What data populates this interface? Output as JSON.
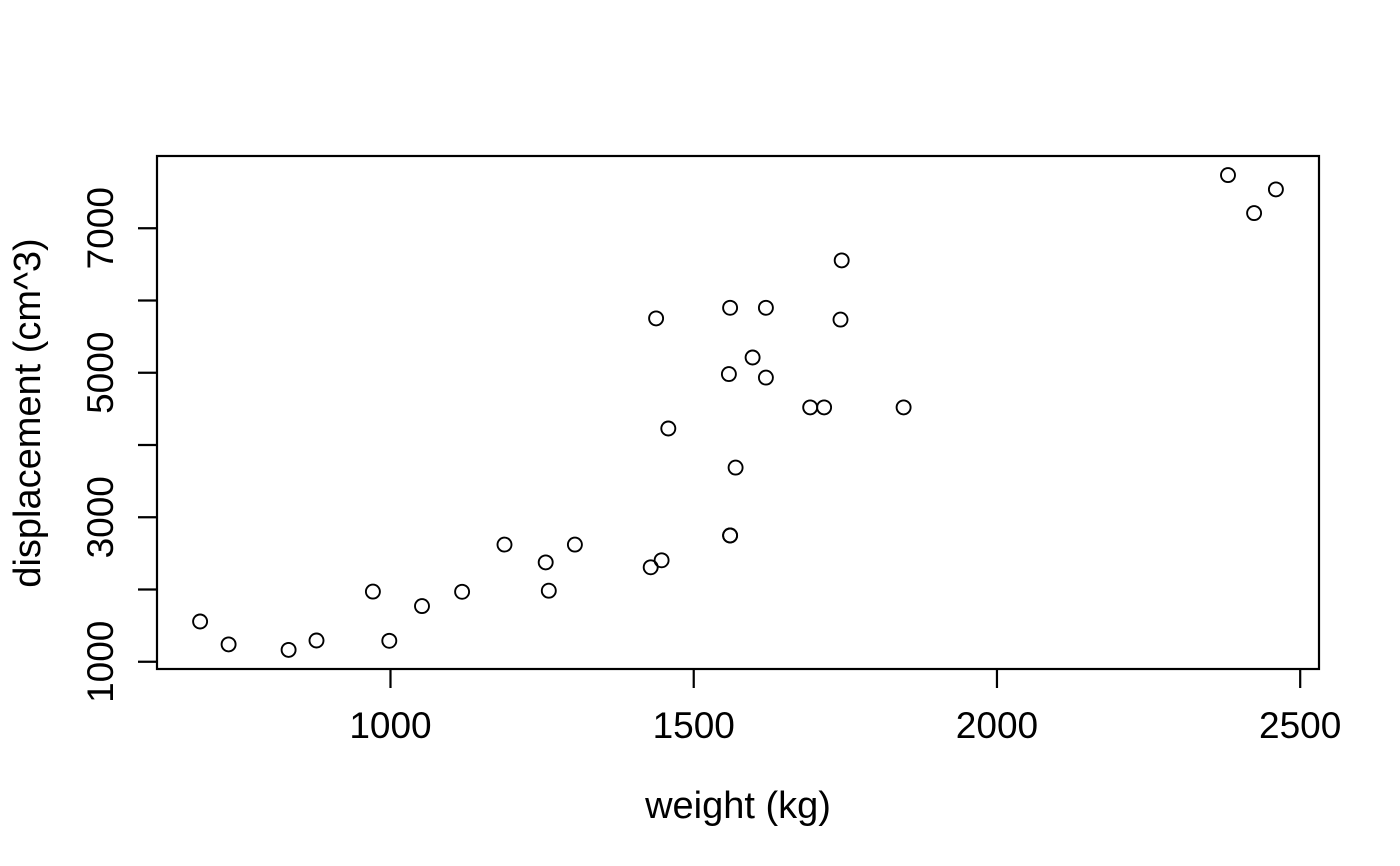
{
  "chart_data": {
    "type": "scatter",
    "title": "",
    "xlabel": "weight (kg)",
    "ylabel": "displacement (cm^3)",
    "xlim": [
      615,
      2531
    ],
    "ylim": [
      900,
      8000
    ],
    "x_ticks": [
      1000,
      1500,
      2000,
      2500
    ],
    "x_tick_labels": [
      "1000",
      "1500",
      "2000",
      "2500"
    ],
    "y_ticks": [
      1000,
      2000,
      3000,
      4000,
      5000,
      6000,
      7000
    ],
    "y_tick_labels": [
      "1000",
      "",
      "3000",
      "",
      "5000",
      "",
      "7000"
    ],
    "grid": false,
    "legend": null,
    "marker": "open-circle",
    "colors": {
      "stroke": "#000000",
      "background": "#ffffff"
    },
    "points": [
      {
        "x": 1188,
        "y": 2622
      },
      {
        "x": 1304,
        "y": 2622
      },
      {
        "x": 1052,
        "y": 1770
      },
      {
        "x": 1458,
        "y": 4228
      },
      {
        "x": 1560,
        "y": 5899
      },
      {
        "x": 1569,
        "y": 3687
      },
      {
        "x": 1619,
        "y": 5899
      },
      {
        "x": 1447,
        "y": 2404
      },
      {
        "x": 1429,
        "y": 2307
      },
      {
        "x": 1560,
        "y": 2747
      },
      {
        "x": 1560,
        "y": 2747
      },
      {
        "x": 1846,
        "y": 4520
      },
      {
        "x": 1692,
        "y": 4520
      },
      {
        "x": 1715,
        "y": 4520
      },
      {
        "x": 2381,
        "y": 7735
      },
      {
        "x": 2460,
        "y": 7538
      },
      {
        "x": 2424,
        "y": 7210
      },
      {
        "x": 998,
        "y": 1290
      },
      {
        "x": 733,
        "y": 1241
      },
      {
        "x": 832,
        "y": 1165
      },
      {
        "x": 1118,
        "y": 1968
      },
      {
        "x": 1597,
        "y": 5211
      },
      {
        "x": 1558,
        "y": 4982
      },
      {
        "x": 1742,
        "y": 5736
      },
      {
        "x": 1744,
        "y": 6555
      },
      {
        "x": 878,
        "y": 1295
      },
      {
        "x": 971,
        "y": 1971
      },
      {
        "x": 686,
        "y": 1558
      },
      {
        "x": 1438,
        "y": 5752
      },
      {
        "x": 1256,
        "y": 2376
      },
      {
        "x": 1619,
        "y": 4933
      },
      {
        "x": 1261,
        "y": 1983
      }
    ]
  }
}
